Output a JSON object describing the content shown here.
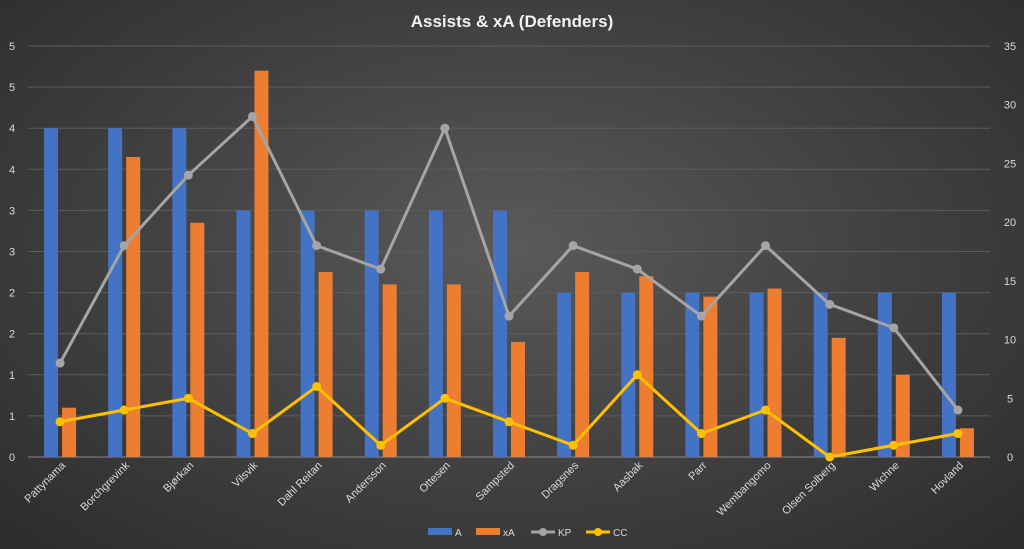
{
  "chart_data": {
    "type": "bar",
    "title": "Assists & xA (Defenders)",
    "categories": [
      "Pattynama",
      "Borchgrevink",
      "Bjørkan",
      "Vilsvik",
      "Dahl Reitan",
      "Andersson",
      "Ottesen",
      "Sampsted",
      "Dragsnes",
      "Aasbak",
      "Parr",
      "Wembangomo",
      "Olsen Solberg",
      "Wichne",
      "Hovland"
    ],
    "left_axis": {
      "range": [
        0,
        5
      ],
      "tick_labels": [
        "0",
        "1",
        "1",
        "2",
        "2",
        "3",
        "3",
        "4",
        "4",
        "5",
        "5"
      ]
    },
    "right_axis": {
      "range": [
        0,
        35
      ],
      "tick_labels": [
        "0",
        "5",
        "10",
        "15",
        "20",
        "25",
        "30",
        "35"
      ]
    },
    "series": [
      {
        "name": "A",
        "type": "bar",
        "axis": "left",
        "color": "#4472C4",
        "values": [
          4,
          4,
          4,
          3,
          3,
          3,
          3,
          3,
          2,
          2,
          2,
          2,
          2,
          2,
          2
        ]
      },
      {
        "name": "xA",
        "type": "bar",
        "axis": "left",
        "color": "#ED7D31",
        "values": [
          0.6,
          3.65,
          2.85,
          4.7,
          2.25,
          2.1,
          2.1,
          1.4,
          2.25,
          2.2,
          1.95,
          2.05,
          1.45,
          1.0,
          0.35
        ]
      },
      {
        "name": "KP",
        "type": "line",
        "axis": "right",
        "color": "#A5A5A5",
        "values": [
          8,
          18,
          24,
          29,
          18,
          16,
          28,
          12,
          18,
          16,
          12,
          18,
          13,
          11,
          4
        ]
      },
      {
        "name": "CC",
        "type": "line",
        "axis": "right",
        "color": "#FFC000",
        "values": [
          3,
          4,
          5,
          2,
          6,
          1,
          5,
          3,
          1,
          7,
          2,
          4,
          0,
          1,
          2
        ]
      }
    ],
    "grid": true,
    "legend_position": "bottom"
  }
}
